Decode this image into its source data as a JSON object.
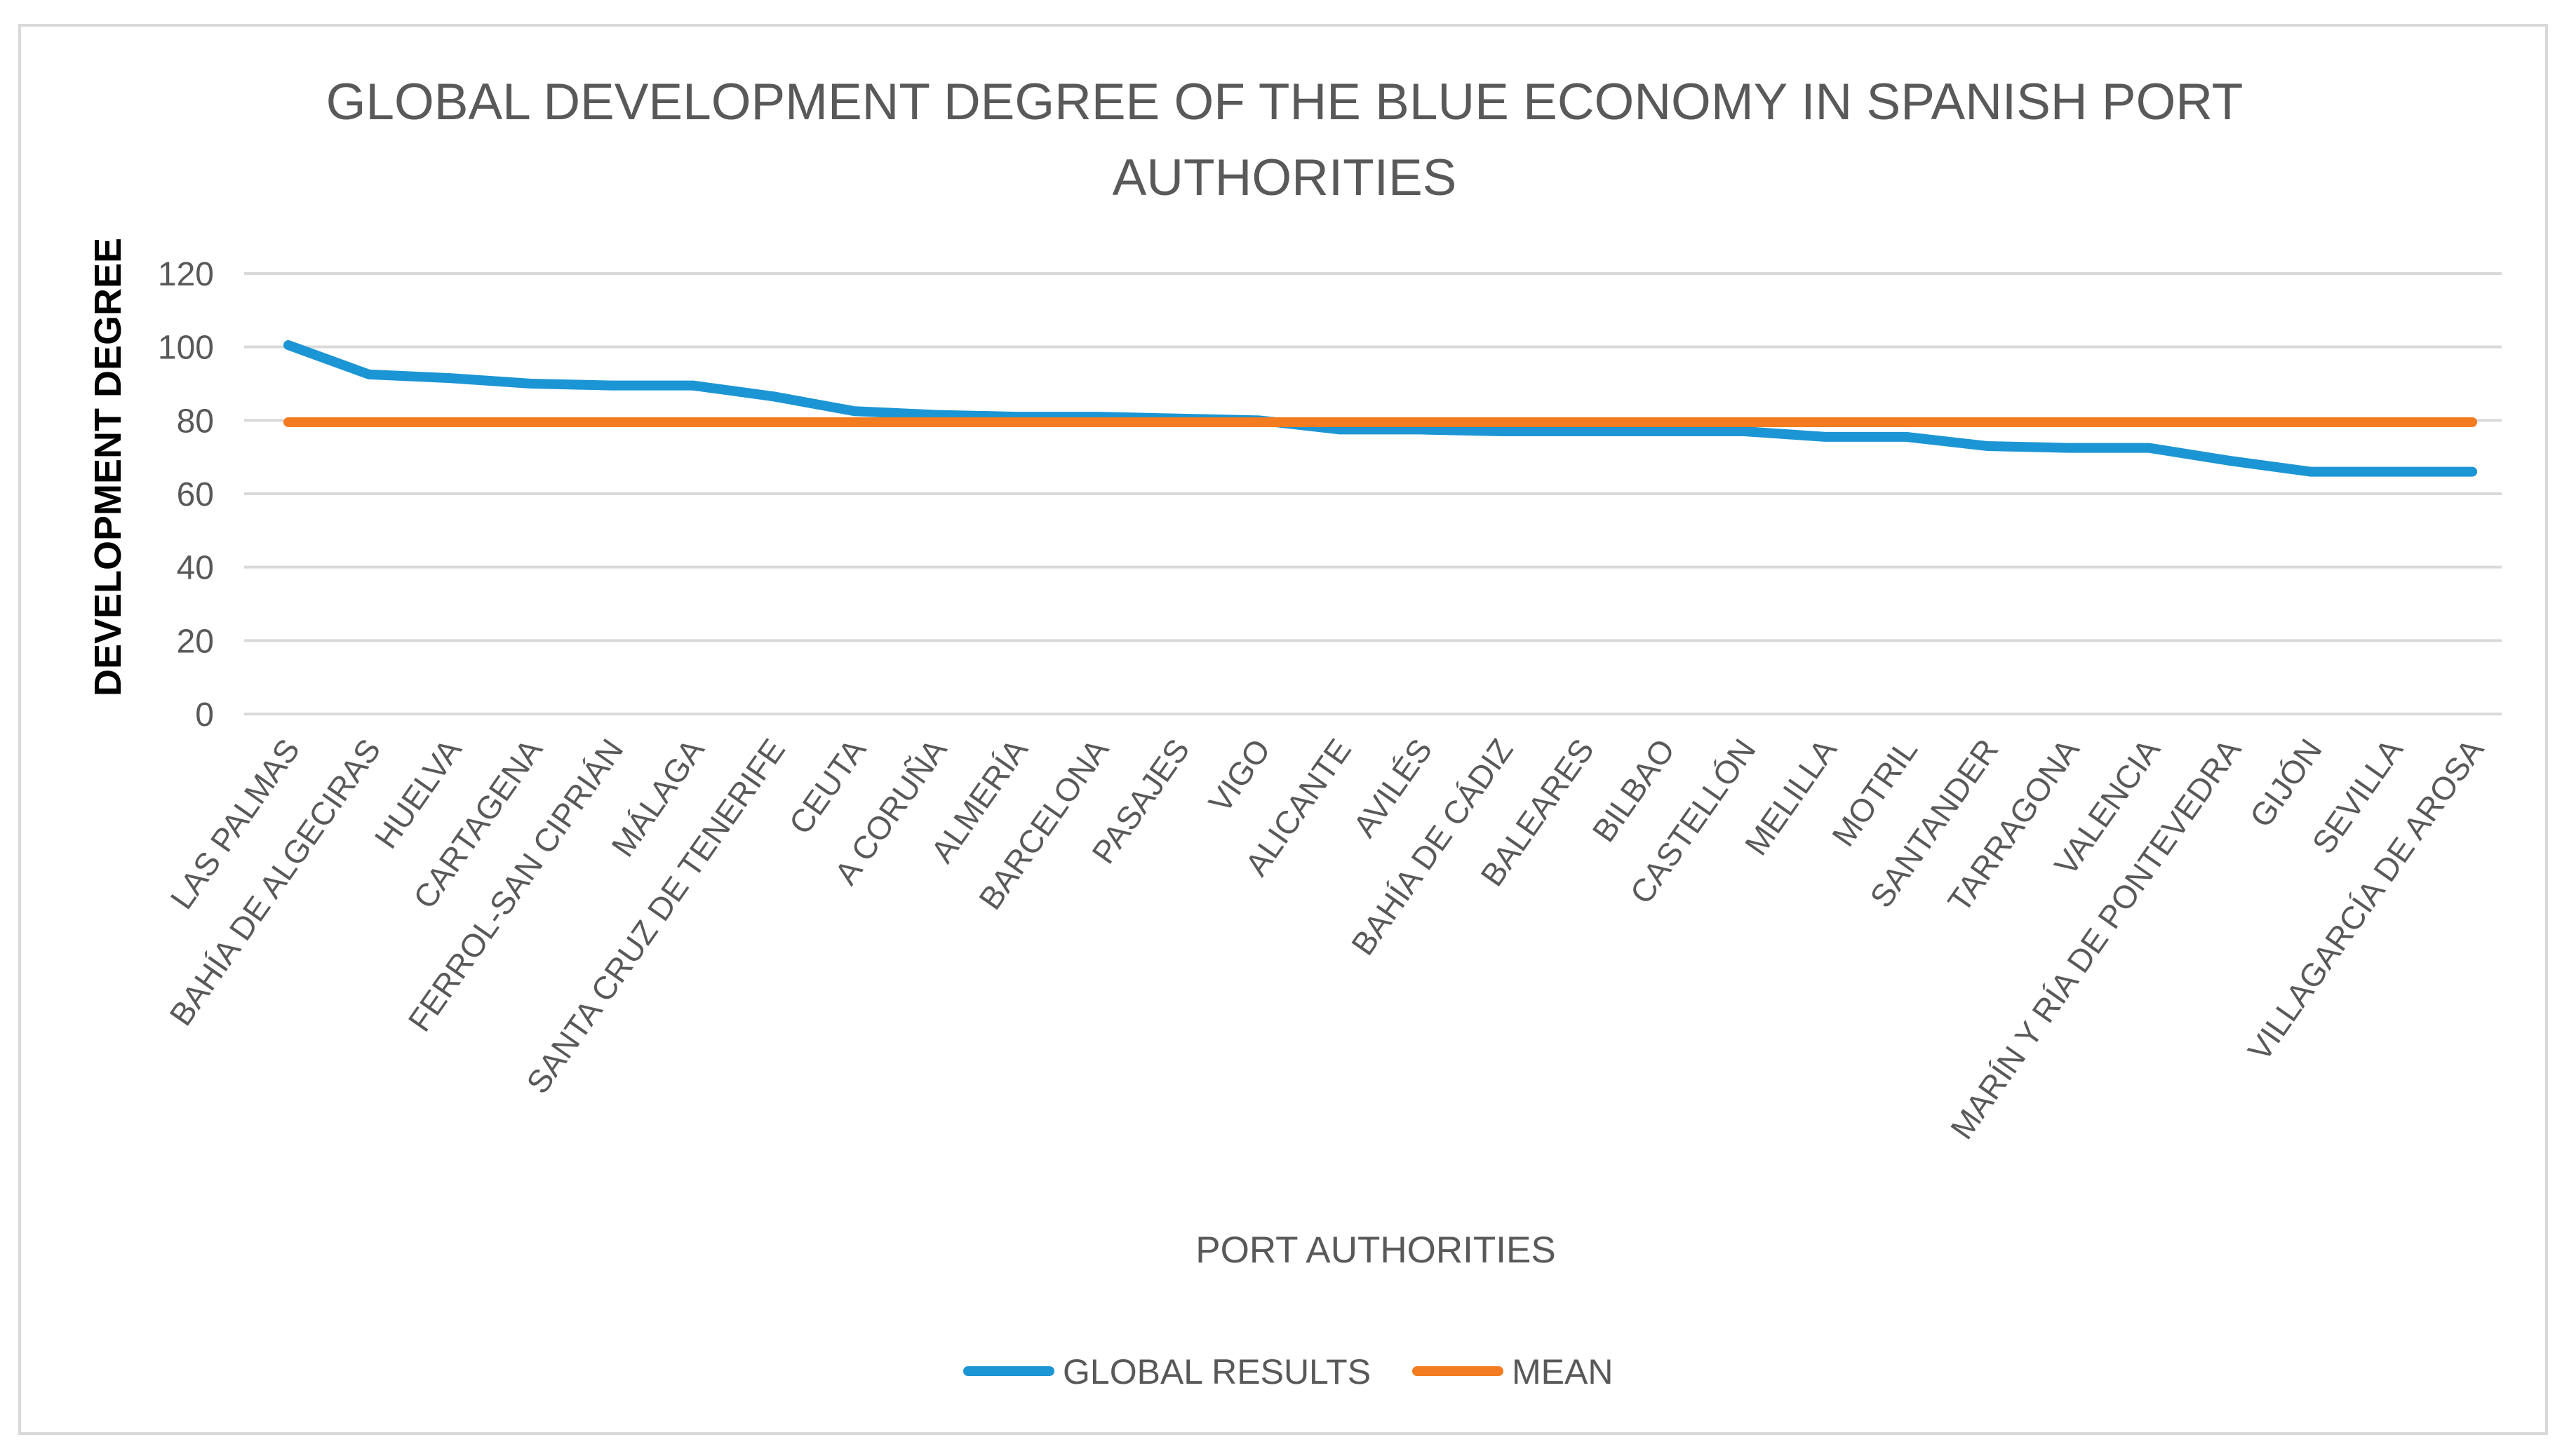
{
  "chart_data": {
    "type": "line",
    "title_lines": [
      "GLOBAL DEVELOPMENT DEGREE OF THE BLUE ECONOMY IN SPANISH PORT",
      "AUTHORITIES"
    ],
    "xlabel": "PORT AUTHORITIES",
    "ylabel": "DEVELOPMENT DEGREE",
    "ylim": [
      0,
      120
    ],
    "yticks": [
      0,
      20,
      40,
      60,
      80,
      100,
      120
    ],
    "grid": true,
    "legend_position": "bottom",
    "categories": [
      "LAS PALMAS",
      "BAHÍA DE ALGECIRAS",
      "HUELVA",
      "CARTAGENA",
      "FERROL-SAN CIPRIÁN",
      "MÁLAGA",
      "SANTA CRUZ DE TENERIFE",
      "CEUTA",
      "A CORUÑA",
      "ALMERÍA",
      "BARCELONA",
      "PASAJES",
      "VIGO",
      "ALICANTE",
      "AVILÉS",
      "BAHÍA DE CÁDIZ",
      "BALEARES",
      "BILBAO",
      "CASTELLÓN",
      "MELILLA",
      "MOTRIL",
      "SANTANDER",
      "TARRAGONA",
      "VALENCIA",
      "MARÍN Y RÍA DE PONTEVEDRA",
      "GIJÓN",
      "SEVILLA",
      "VILLAGARCÍA DE AROSA"
    ],
    "series": [
      {
        "name": "GLOBAL  RESULTS",
        "color": "#1c95d4",
        "values": [
          100.5,
          92.5,
          91.5,
          90,
          89.5,
          89.5,
          86.5,
          82.5,
          81.5,
          81,
          81,
          80.5,
          80,
          77.5,
          77.5,
          77,
          77,
          77,
          77,
          75.5,
          75.5,
          73,
          72.5,
          72.5,
          69,
          66,
          66,
          66
        ]
      },
      {
        "name": "MEAN",
        "color": "#f47c20",
        "values": [
          79.5,
          79.5,
          79.5,
          79.5,
          79.5,
          79.5,
          79.5,
          79.5,
          79.5,
          79.5,
          79.5,
          79.5,
          79.5,
          79.5,
          79.5,
          79.5,
          79.5,
          79.5,
          79.5,
          79.5,
          79.5,
          79.5,
          79.5,
          79.5,
          79.5,
          79.5,
          79.5,
          79.5
        ]
      }
    ]
  },
  "colors": {
    "grid": "#d9d9d9",
    "text": "#595959",
    "frame": "#d9d9d9"
  }
}
